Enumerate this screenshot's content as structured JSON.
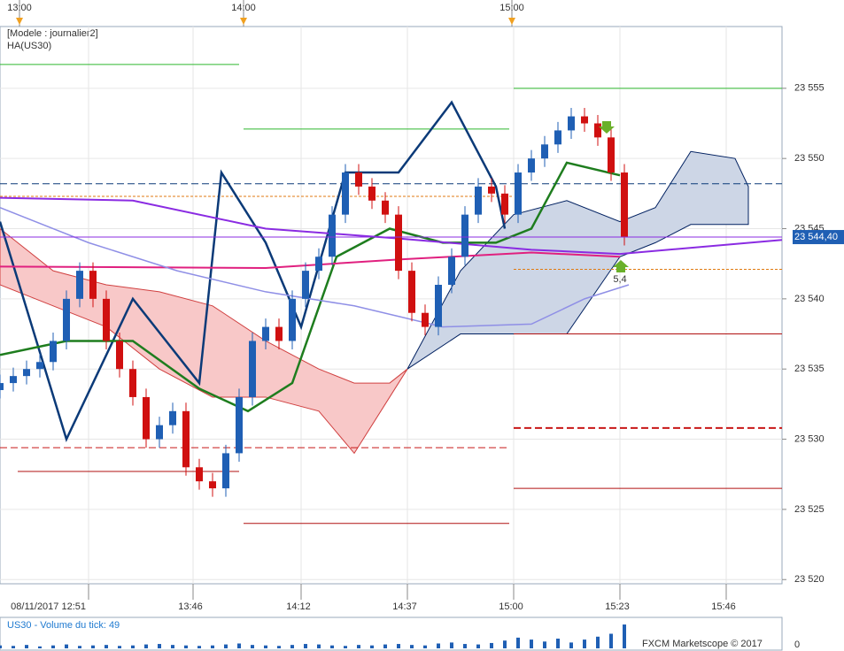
{
  "chart_data": {
    "type": "candlestick",
    "texts": {
      "model": "[Modele : journalier2]",
      "indicator": "HA(US30)",
      "annotation": "5,4",
      "brand": "FXCM Marketscope © 2017",
      "volume_label": "US30 - Volume du tick: 49",
      "price_tag": "23 544,40"
    },
    "price_tag_value": 23544.4,
    "xlim": [
      0,
      176.6
    ],
    "ylim": [
      23519.7,
      23559.4
    ],
    "yticks": [
      {
        "value": 23520,
        "label": "23 520"
      },
      {
        "value": 23525,
        "label": "23 525"
      },
      {
        "value": 23530,
        "label": "23 530"
      },
      {
        "value": 23535,
        "label": "23 535"
      },
      {
        "value": 23540,
        "label": "23 540"
      },
      {
        "value": 23545,
        "label": "23 545"
      },
      {
        "value": 23550,
        "label": "23 550"
      },
      {
        "value": 23555,
        "label": "23 555"
      }
    ],
    "xticks": [
      {
        "value": 20,
        "label": "08/11/2017 12:51"
      },
      {
        "value": 43.6,
        "label": "13:46"
      },
      {
        "value": 68,
        "label": "14:12"
      },
      {
        "value": 92,
        "label": "14:37"
      },
      {
        "value": 116,
        "label": "15:00"
      },
      {
        "value": 140,
        "label": "15:23"
      },
      {
        "value": 164,
        "label": "15:46"
      }
    ],
    "top_ticks": [
      {
        "value": 4.4,
        "label": "13:00"
      },
      {
        "value": 55,
        "label": "14:00"
      },
      {
        "value": 115.6,
        "label": "15:00"
      }
    ],
    "up_color": "#1f5fb4",
    "down_color": "#d01010",
    "x": [
      0,
      3,
      6,
      9,
      12,
      15,
      18,
      21,
      24,
      27,
      30,
      33,
      36,
      39,
      42,
      45,
      48,
      51,
      54,
      57,
      60,
      63,
      66,
      69,
      72,
      75,
      78,
      81,
      84,
      87,
      90,
      93,
      96,
      99,
      102,
      105,
      108,
      111,
      114,
      117,
      120,
      123,
      126,
      129,
      132,
      135,
      138,
      141
    ],
    "opens": [
      23533.5,
      23534,
      23534.5,
      23535,
      23535.5,
      23537,
      23540,
      23542,
      23540,
      23537,
      23535,
      23533,
      23530,
      23531,
      23532,
      23528,
      23527,
      23526.5,
      23529,
      23533,
      23537,
      23538,
      23537,
      23540,
      23542,
      23543,
      23546,
      23549,
      23548,
      23547,
      23546,
      23542,
      23539,
      23538,
      23541,
      23543,
      23546,
      23548,
      23547.5,
      23546,
      23549,
      23550,
      23551,
      23552,
      23553,
      23552.5,
      23551.5,
      23549
    ],
    "closes": [
      23534,
      23534.5,
      23535,
      23535.5,
      23537,
      23540,
      23542,
      23540,
      23537,
      23535,
      23533,
      23530,
      23531,
      23532,
      23528,
      23527,
      23526.5,
      23529,
      23533,
      23537,
      23538,
      23537,
      23540,
      23542,
      23543,
      23546,
      23549,
      23548,
      23547,
      23546,
      23542,
      23539,
      23538,
      23541,
      23543,
      23546,
      23548,
      23547.5,
      23546,
      23549,
      23550,
      23551,
      23552,
      23553,
      23552.5,
      23551.5,
      23549,
      23544.4
    ],
    "highs": [
      23534.6,
      23535.1,
      23535.6,
      23536.1,
      23537.6,
      23540.6,
      23542.6,
      23542.6,
      23540.6,
      23537.6,
      23535.6,
      23533.6,
      23531.6,
      23532.6,
      23532.6,
      23528.6,
      23527.6,
      23529.6,
      23533.6,
      23537.6,
      23538.6,
      23538.6,
      23540.6,
      23542.6,
      23543.6,
      23546.6,
      23549.6,
      23549.6,
      23548.6,
      23547.6,
      23546.6,
      23542.6,
      23539.6,
      23541.6,
      23543.6,
      23546.6,
      23548.6,
      23548.6,
      23548.1,
      23549.6,
      23550.6,
      23551.6,
      23552.6,
      23553.6,
      23553.6,
      23553.1,
      23552.1,
      23549.6
    ],
    "lows": [
      23532.9,
      23533.4,
      23533.9,
      23534.4,
      23534.9,
      23536.4,
      23539.4,
      23539.4,
      23536.4,
      23534.4,
      23532.4,
      23529.4,
      23529.4,
      23530.4,
      23527.4,
      23526.4,
      23525.9,
      23525.9,
      23528.4,
      23532.4,
      23536.4,
      23536.4,
      23536.4,
      23539.4,
      23541.4,
      23542.4,
      23545.4,
      23547.4,
      23546.4,
      23545.4,
      23541.4,
      23538.4,
      23537.4,
      23537.4,
      23540.4,
      23542.4,
      23545.4,
      23546.9,
      23545.4,
      23545.4,
      23548.4,
      23549.4,
      23550.4,
      23551.4,
      23551.9,
      23550.9,
      23548.4,
      23543.8
    ],
    "clouds": [
      {
        "color": "#f8c8c8",
        "x": [
          0,
          12,
          24,
          36,
          48,
          60,
          72,
          80,
          88,
          92
        ],
        "upper": [
          23545,
          23542,
          23541,
          23540.5,
          23539.5,
          23537,
          23535,
          23534,
          23534,
          23535
        ],
        "lower": [
          23541,
          23539.5,
          23538,
          23535,
          23533,
          23533,
          23532,
          23529,
          23533,
          23535
        ]
      },
      {
        "color": "#cdd6e6",
        "x": [
          92,
          104,
          116,
          128,
          140,
          148,
          156,
          166,
          169
        ],
        "upper": [
          23535,
          23542,
          23546,
          23547,
          23545.5,
          23546.5,
          23550.5,
          23550,
          23548
        ],
        "lower": [
          23535,
          23537.5,
          23537.5,
          23537.5,
          23543,
          23544,
          23545.3,
          23545.3,
          23545.3
        ]
      }
    ],
    "lines": [
      {
        "color": "#0b3a78",
        "width": 2.5,
        "x": [
          0,
          15,
          30,
          45,
          50,
          60,
          68,
          78,
          90,
          102,
          112,
          114
        ],
        "values": [
          23545.5,
          23530,
          23540,
          23534,
          23549,
          23544,
          23538,
          23549,
          23549,
          23554,
          23548,
          23545
        ]
      },
      {
        "color": "#1e7d1e",
        "width": 2.5,
        "x": [
          0,
          15,
          30,
          45,
          56,
          66,
          76,
          88,
          100,
          112,
          120,
          128,
          140
        ],
        "values": [
          23536,
          23537,
          23537,
          23533.6,
          23532,
          23534,
          23543,
          23545,
          23544,
          23544,
          23545,
          23549.7,
          23548.8
        ]
      },
      {
        "color": "#8a2be2",
        "width": 2,
        "x": [
          0,
          30,
          60,
          90,
          120,
          140,
          176.6
        ],
        "values": [
          23547.2,
          23547,
          23545,
          23544.3,
          23543.5,
          23543.2,
          23544.2
        ]
      },
      {
        "color": "#e0207f",
        "width": 2,
        "x": [
          0,
          60,
          90,
          120,
          140
        ],
        "values": [
          23542.3,
          23542.2,
          23542.8,
          23543.3,
          23543
        ]
      },
      {
        "color": "#8f8fe6",
        "width": 1.5,
        "x": [
          0,
          20,
          40,
          60,
          80,
          100,
          120,
          132,
          142
        ],
        "values": [
          23546.5,
          23544,
          23542,
          23540.5,
          23539.5,
          23538,
          23538.2,
          23540,
          23541
        ]
      }
    ],
    "levels": [
      {
        "value": 23548.2,
        "x": [
          0,
          176.6
        ],
        "color": "#0b3a78",
        "dash": "8,4"
      },
      {
        "value": 23547.3,
        "x": [
          0,
          116
        ],
        "color": "#e07a10",
        "dash": "3,2"
      },
      {
        "value": 23542.1,
        "x": [
          116,
          176.6
        ],
        "color": "#e07a10",
        "dash": "3,2"
      },
      {
        "value": 23555,
        "x": [
          116,
          176.6
        ],
        "color": "#2db82d",
        "dash": ""
      },
      {
        "value": 23552.1,
        "x": [
          55,
          115
        ],
        "color": "#2db82d",
        "dash": ""
      },
      {
        "value": 23556.7,
        "x": [
          0,
          54
        ],
        "color": "#2db82d",
        "dash": ""
      },
      {
        "value": 23537.5,
        "x": [
          116,
          176.6
        ],
        "color": "#b01010",
        "dash": ""
      },
      {
        "value": 23526.5,
        "x": [
          116,
          176.6
        ],
        "color": "#b01010",
        "dash": ""
      },
      {
        "value": 23524,
        "x": [
          55,
          115
        ],
        "color": "#b01010",
        "dash": ""
      },
      {
        "value": 23527.7,
        "x": [
          4,
          54
        ],
        "color": "#b01010",
        "dash": ""
      },
      {
        "value": 23530.8,
        "x": [
          116,
          176.6
        ],
        "color": "#c81818",
        "dash": "8,4"
      },
      {
        "value": 23529.4,
        "x": [
          0,
          115
        ],
        "color": "#c81818",
        "dash": "8,4"
      }
    ],
    "volume": {
      "color": "#1f5fb4",
      "ylim": [
        0,
        60
      ],
      "yticks": [
        0
      ],
      "values": [
        6,
        5,
        7,
        4,
        6,
        8,
        5,
        6,
        7,
        5,
        6,
        8,
        9,
        7,
        6,
        5,
        6,
        8,
        10,
        7,
        6,
        5,
        7,
        9,
        8,
        6,
        5,
        7,
        6,
        8,
        9,
        7,
        6,
        10,
        12,
        9,
        8,
        11,
        16,
        22,
        18,
        14,
        20,
        12,
        18,
        24,
        30,
        49
      ]
    }
  }
}
